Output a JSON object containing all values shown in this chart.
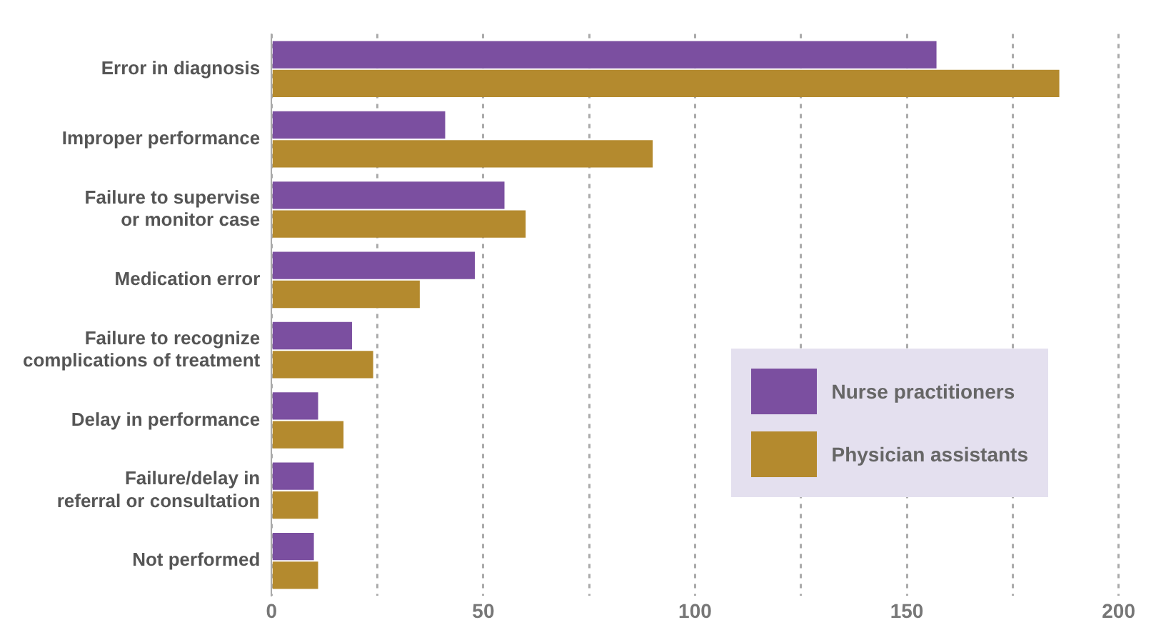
{
  "chart_data": {
    "type": "bar",
    "orientation": "horizontal",
    "categories": [
      "Error in diagnosis",
      "Improper performance",
      "Failure to supervise\nor monitor case",
      "Medication error",
      "Failure to recognize\ncomplications of treatment",
      "Delay in performance",
      "Failure/delay in\nreferral or consultation",
      "Not performed"
    ],
    "series": [
      {
        "name": "Nurse practitioners",
        "color": "#7b4fa0",
        "values": [
          157,
          41,
          55,
          48,
          19,
          11,
          10,
          10
        ]
      },
      {
        "name": "Physician assistants",
        "color": "#b48a2e",
        "values": [
          186,
          90,
          60,
          35,
          24,
          17,
          11,
          11
        ]
      }
    ],
    "xlim": [
      0,
      200
    ],
    "xticks": [
      0,
      {
        "value": 25,
        "label": null
      },
      50,
      {
        "value": 75,
        "label": null
      },
      100,
      {
        "value": 125,
        "label": null
      },
      150,
      {
        "value": 175,
        "label": null
      },
      200
    ],
    "grid": "x",
    "legend": "bottom right"
  }
}
